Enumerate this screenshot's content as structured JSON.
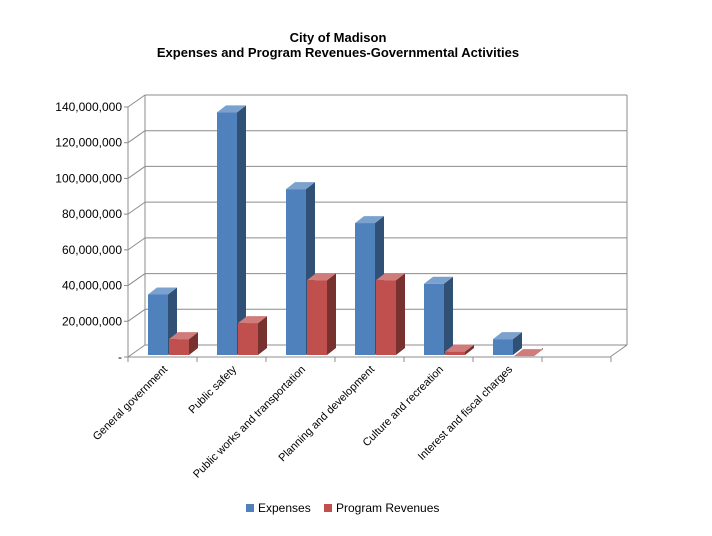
{
  "chart_data": {
    "type": "bar",
    "title": "City of Madison",
    "subtitle": "Expenses and Program Revenues-Governmental Activities",
    "categories": [
      "General government",
      "Public safety",
      "Public works and transportation",
      "Planning and development",
      "Culture and recreation",
      "Interest and fiscal charges"
    ],
    "series": [
      {
        "name": "Expenses",
        "color": "#4f81bd",
        "values": [
          35000000,
          137000000,
          94000000,
          75000000,
          41000000,
          10000000
        ]
      },
      {
        "name": "Program Revenues",
        "color": "#c0504d",
        "values": [
          10000000,
          19000000,
          43000000,
          43000000,
          3000000,
          500000
        ]
      }
    ],
    "y_ticks": [
      {
        "value": 0,
        "label": "-"
      },
      {
        "value": 20000000,
        "label": "20,000,000"
      },
      {
        "value": 40000000,
        "label": "40,000,000"
      },
      {
        "value": 60000000,
        "label": "60,000,000"
      },
      {
        "value": 80000000,
        "label": "80,000,000"
      },
      {
        "value": 100000000,
        "label": "100,000,000"
      },
      {
        "value": 120000000,
        "label": "120,000,000"
      },
      {
        "value": 140000000,
        "label": "140,000,000"
      }
    ],
    "ylim": [
      0,
      140000000
    ],
    "grid": true,
    "legend": "bottom"
  }
}
